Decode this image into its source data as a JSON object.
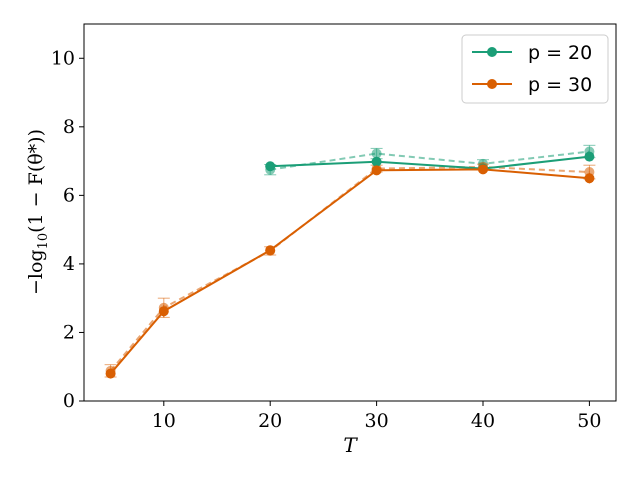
{
  "chart_data": {
    "type": "line",
    "xlabel": "T",
    "ylabel": "−log10(1 − F(θ*))",
    "ylabel_parts": {
      "prefix": "−log",
      "sub": "10",
      "suffix": "(1 − F(θ*))"
    },
    "xlim": [
      2.5,
      52.5
    ],
    "ylim": [
      0,
      11
    ],
    "xticks": [
      "10",
      "20",
      "30",
      "40",
      "50"
    ],
    "xtick_values": [
      10,
      20,
      30,
      40,
      50
    ],
    "yticks": [
      "0",
      "2",
      "4",
      "6",
      "8",
      "10"
    ],
    "ytick_values": [
      0,
      2,
      4,
      6,
      8,
      10
    ],
    "grid": false,
    "legend_position": "top-right",
    "series": [
      {
        "name": "p = 20",
        "color": "#1b9e77",
        "x": [
          20,
          30,
          40,
          50
        ],
        "y": [
          6.85,
          6.98,
          6.78,
          7.13
        ],
        "dashed": {
          "x": [
            20,
            30,
            40,
            50
          ],
          "y": [
            6.75,
            7.22,
            6.92,
            7.28
          ],
          "err": [
            0.15,
            0.15,
            0.12,
            0.18
          ]
        }
      },
      {
        "name": "p = 30",
        "color": "#d95f02",
        "x": [
          5,
          10,
          20,
          30,
          40,
          50
        ],
        "y": [
          0.8,
          2.62,
          4.4,
          6.73,
          6.76,
          6.5
        ],
        "err": [
          0.12,
          0.18,
          0.12,
          0.1,
          0.08,
          0.15
        ],
        "dashed": {
          "x": [
            5,
            10,
            20,
            30,
            40,
            50
          ],
          "y": [
            0.88,
            2.72,
            4.38,
            6.78,
            6.83,
            6.68
          ],
          "err": [
            0.18,
            0.28,
            0.12,
            0.1,
            0.08,
            0.2
          ]
        }
      }
    ]
  }
}
